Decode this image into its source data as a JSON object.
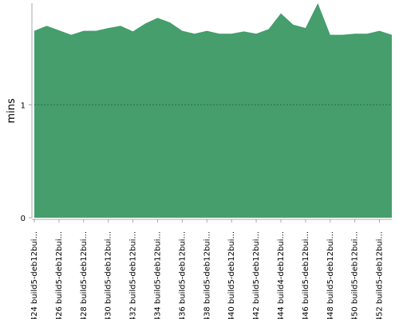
{
  "chart_data": {
    "type": "area",
    "y_label": "mins",
    "categories": [
      "#424 build5-deb12bui...",
      null,
      "#426 build5-deb12bui...",
      null,
      "#428 build5-deb12bui...",
      null,
      "#430 build5-deb12bui...",
      null,
      "#432 build5-deb12bui...",
      null,
      "#434 build5-deb12bui...",
      null,
      "#436 build5-deb12bui...",
      null,
      "#438 build5-deb12bui...",
      null,
      "#440 build5-deb12bui...",
      null,
      "#442 build5-deb12bui...",
      null,
      "#444 build4-deb12bui...",
      null,
      "#446 build5-deb12bui...",
      null,
      "#448 build5-deb12bui...",
      null,
      "#450 build5-deb12bui...",
      null,
      "#452 build5-deb12bui...",
      null
    ],
    "values": [
      1.655,
      1.7,
      1.66,
      1.62,
      1.655,
      1.655,
      1.68,
      1.7,
      1.65,
      1.72,
      1.77,
      1.73,
      1.655,
      1.63,
      1.655,
      1.63,
      1.63,
      1.65,
      1.63,
      1.67,
      1.81,
      1.71,
      1.68,
      1.9,
      1.62,
      1.62,
      1.63,
      1.63,
      1.655,
      1.62
    ],
    "color": "#459e6c",
    "ylim": [
      0,
      1.9
    ],
    "yticks": [
      0,
      1
    ],
    "grid": true
  }
}
